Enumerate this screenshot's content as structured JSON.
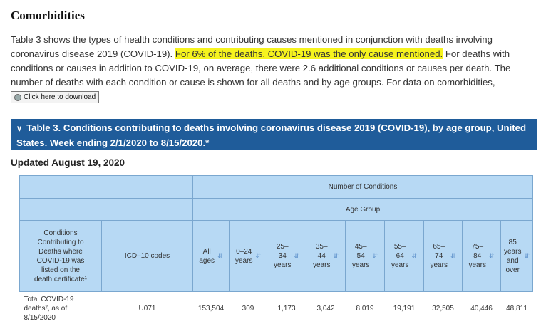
{
  "section": {
    "title": "Comorbidities",
    "para_before": "Table 3 shows the types of health conditions and contributing causes mentioned in conjunction with deaths involving coronavirus disease 2019 (COVID-19). ",
    "para_highlight": "For 6% of the deaths, COVID-19 was the only cause mentioned.",
    "para_after": " For deaths with conditions or causes in addition to COVID-19, on average, there were 2.6 additional conditions or causes per death. The number of deaths with each condition or cause is shown for all deaths and by age groups. For data on comorbidities,",
    "download_label": "Click here to download"
  },
  "banner": {
    "text": "Table 3. Conditions contributing to deaths involving coronavirus disease 2019 (COVID-19), by age group, United States. Week ending 2/1/2020 to 8/15/2020.*"
  },
  "updated": "Updated August 19, 2020",
  "table": {
    "number_of_conditions": "Number of Conditions",
    "age_group": "Age Group",
    "col_conditions": [
      "Conditions",
      "Contributing to",
      "Deaths where",
      "COVID-19 was",
      "listed on the",
      "death certificate¹"
    ],
    "col_icd": "ICD–10 codes",
    "age_columns": [
      [
        "All",
        "ages"
      ],
      [
        "0–24",
        "years"
      ],
      [
        "25–",
        "34",
        "years"
      ],
      [
        "35–",
        "44",
        "years"
      ],
      [
        "45–",
        "54",
        "years"
      ],
      [
        "55–",
        "64",
        "years"
      ],
      [
        "65–",
        "74",
        "years"
      ],
      [
        "75–",
        "84",
        "years"
      ],
      [
        "85",
        "years",
        "and",
        "over"
      ]
    ],
    "row": {
      "label": [
        "Total COVID-19",
        "deaths², as of",
        "8/15/2020"
      ],
      "icd": "U071",
      "values": [
        "153,504",
        "309",
        "1,173",
        "3,042",
        "8,019",
        "19,191",
        "32,505",
        "40,446",
        "48,811"
      ]
    }
  }
}
